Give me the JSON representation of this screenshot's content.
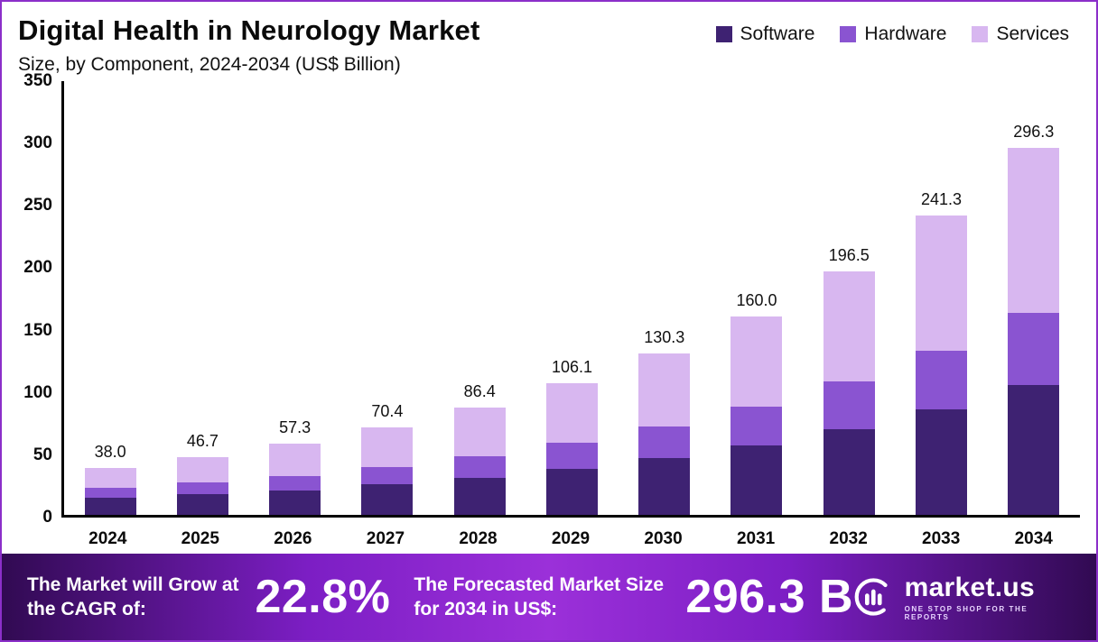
{
  "header": {
    "title": "Digital Health in Neurology Market",
    "subtitle": "Size, by Component, 2024-2034 (US$ Billion)"
  },
  "legend": [
    {
      "label": "Software",
      "color": "#3e2272"
    },
    {
      "label": "Hardware",
      "color": "#8a54d1"
    },
    {
      "label": "Services",
      "color": "#d8b7f0"
    }
  ],
  "chart_data": {
    "type": "bar",
    "stacked": true,
    "title": "Digital Health in Neurology Market Size, by Component, 2024-2034 (US$ Billion)",
    "categories": [
      "2024",
      "2025",
      "2026",
      "2027",
      "2028",
      "2029",
      "2030",
      "2031",
      "2032",
      "2033",
      "2034"
    ],
    "series": [
      {
        "name": "Software",
        "color": "#3e2272",
        "values": [
          13.5,
          16.5,
          20.0,
          24.5,
          30.0,
          37.0,
          45.5,
          56.0,
          69.0,
          85.0,
          104.5
        ]
      },
      {
        "name": "Hardware",
        "color": "#8a54d1",
        "values": [
          8.0,
          9.5,
          11.5,
          14.0,
          17.0,
          21.0,
          25.5,
          31.5,
          38.5,
          47.5,
          58.5
        ]
      },
      {
        "name": "Services",
        "color": "#d8b7f0",
        "values": [
          16.5,
          20.7,
          25.8,
          31.9,
          39.4,
          48.1,
          59.3,
          72.5,
          89.0,
          108.8,
          133.3
        ]
      }
    ],
    "totals": [
      "38.0",
      "46.7",
      "57.3",
      "70.4",
      "86.4",
      "106.1",
      "130.3",
      "160.0",
      "196.5",
      "241.3",
      "296.3"
    ],
    "xlabel": "",
    "ylabel": "US$ Billion",
    "ylim": [
      0,
      350
    ],
    "ytick_step": 50,
    "grid": false,
    "legend_position": "top-right"
  },
  "banner": {
    "cagr_label": "The Market will Grow at the CAGR of:",
    "cagr_value": "22.8%",
    "forecast_label": "The Forecasted Market Size for 2034 in US$:",
    "forecast_value": "296.3 B",
    "brand": "market.us",
    "brand_tagline": "One Stop Shop For The Reports"
  }
}
